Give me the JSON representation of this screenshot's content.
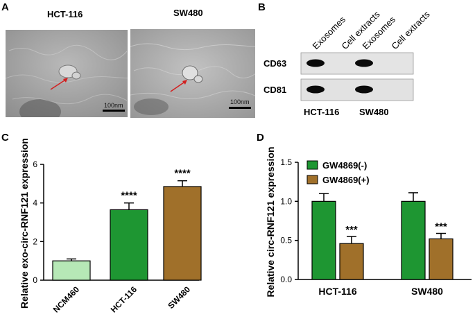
{
  "panels": {
    "A": {
      "label": "A",
      "images": [
        {
          "title": "HCT-116",
          "scale": "100nm"
        },
        {
          "title": "SW480",
          "scale": "100nm"
        }
      ]
    },
    "B": {
      "label": "B",
      "columns": [
        "Exosomes",
        "Cell extracts",
        "Exosomes",
        "Cell extracts"
      ],
      "rows": [
        "CD63",
        "CD81"
      ],
      "groups": [
        "HCT-116",
        "SW480"
      ],
      "bands": {
        "CD63": [
          1,
          0,
          1,
          0
        ],
        "CD81": [
          1,
          0,
          1,
          0
        ]
      }
    },
    "C": {
      "label": "C"
    },
    "D": {
      "label": "D"
    }
  },
  "chart_data": [
    {
      "type": "bar",
      "panel": "C",
      "ylabel": "Relative exo-circ-RNF121 expression",
      "categories": [
        "NCM460",
        "HCT-116",
        "SW480"
      ],
      "values": [
        1.0,
        3.65,
        4.85
      ],
      "errors": [
        0.1,
        0.35,
        0.3
      ],
      "annotations": [
        "",
        "****",
        "****"
      ],
      "colors": [
        "#b6e8b6",
        "#1e9632",
        "#a0702a"
      ],
      "ylim": [
        0,
        6
      ],
      "yticks": [
        0,
        2,
        4,
        6
      ]
    },
    {
      "type": "bar",
      "panel": "D",
      "ylabel": "Relative circ-RNF121 expression",
      "categories": [
        "HCT-116",
        "SW480"
      ],
      "series": [
        {
          "name": "GW4869(-)",
          "values": [
            1.0,
            1.0
          ],
          "errors": [
            0.1,
            0.11
          ],
          "annotations": [
            "",
            ""
          ],
          "color": "#1e9632"
        },
        {
          "name": "GW4869(+)",
          "values": [
            0.46,
            0.52
          ],
          "errors": [
            0.09,
            0.07
          ],
          "annotations": [
            "***",
            "***"
          ],
          "color": "#a0702a"
        }
      ],
      "ylim": [
        0,
        1.5
      ],
      "yticks": [
        0.0,
        0.5,
        1.0,
        1.5
      ],
      "legend": "top-left"
    }
  ]
}
